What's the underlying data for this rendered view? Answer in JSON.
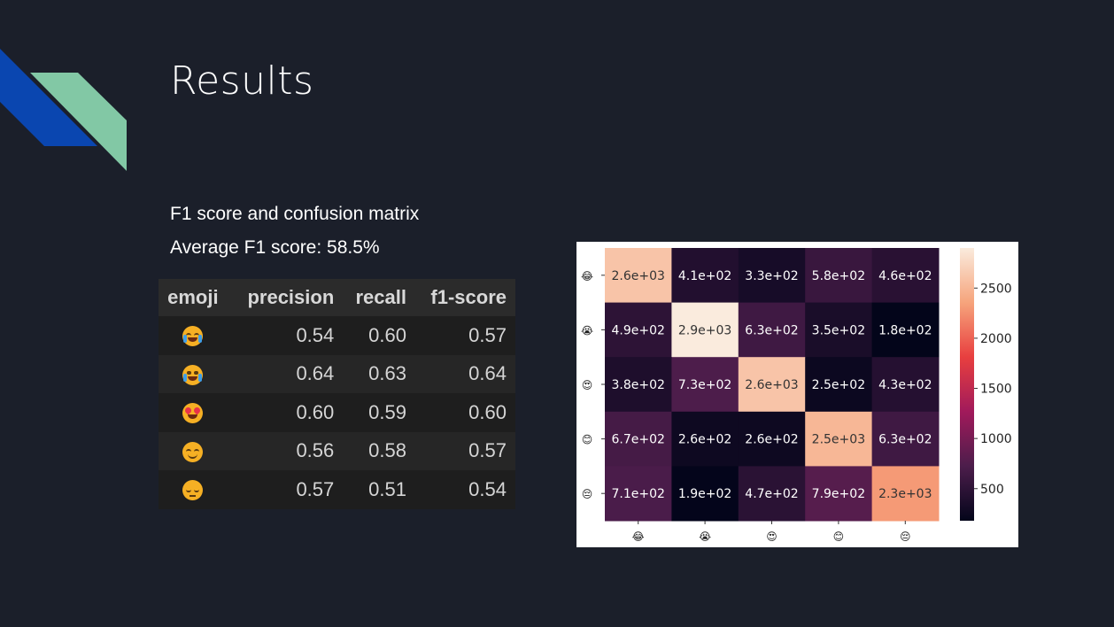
{
  "slide": {
    "title": "Results",
    "subtitle1": "F1 score and confusion matrix",
    "subtitle2": "Average F1 score: 58.5%"
  },
  "table": {
    "headers": [
      "emoji",
      "precision",
      "recall",
      "f1-score"
    ],
    "rows": [
      {
        "emoji": "face-with-tears-of-joy-icon",
        "precision": "0.54",
        "recall": "0.60",
        "f1": "0.57"
      },
      {
        "emoji": "loudly-crying-face-icon",
        "precision": "0.64",
        "recall": "0.63",
        "f1": "0.64"
      },
      {
        "emoji": "heart-eyes-face-icon",
        "precision": "0.60",
        "recall": "0.59",
        "f1": "0.60"
      },
      {
        "emoji": "smiling-face-icon",
        "precision": "0.56",
        "recall": "0.58",
        "f1": "0.57"
      },
      {
        "emoji": "pensive-face-icon",
        "precision": "0.57",
        "recall": "0.51",
        "f1": "0.54"
      }
    ]
  },
  "chart_data": {
    "type": "heatmap",
    "title": "",
    "row_labels": [
      "😂",
      "😭",
      "😍",
      "😊",
      "😔"
    ],
    "col_labels": [
      "😂",
      "😭",
      "😍",
      "😊",
      "😔"
    ],
    "values": [
      [
        2600,
        410,
        330,
        580,
        460
      ],
      [
        490,
        2900,
        630,
        350,
        180
      ],
      [
        380,
        730,
        2600,
        250,
        430
      ],
      [
        670,
        260,
        260,
        2500,
        630
      ],
      [
        710,
        190,
        470,
        790,
        2300
      ]
    ],
    "cell_labels": [
      [
        "2.6e+03",
        "4.1e+02",
        "3.3e+02",
        "5.8e+02",
        "4.6e+02"
      ],
      [
        "4.9e+02",
        "2.9e+03",
        "6.3e+02",
        "3.5e+02",
        "1.8e+02"
      ],
      [
        "3.8e+02",
        "7.3e+02",
        "2.6e+03",
        "2.5e+02",
        "4.3e+02"
      ],
      [
        "6.7e+02",
        "2.6e+02",
        "2.6e+02",
        "2.5e+03",
        "6.3e+02"
      ],
      [
        "7.1e+02",
        "1.9e+02",
        "4.7e+02",
        "7.9e+02",
        "2.3e+03"
      ]
    ],
    "colorbar": {
      "range": [
        180,
        2900
      ],
      "ticks": [
        500,
        1000,
        1500,
        2000,
        2500
      ],
      "tick_labels": [
        "500",
        "1000",
        "1500",
        "2000",
        "2500"
      ]
    },
    "colormap": [
      "#03051a",
      "#4c1d4b",
      "#a11a5b",
      "#e83f3f",
      "#f6a47c",
      "#faebdd"
    ]
  },
  "colors": {
    "background": "#1b1f2a",
    "deco_blue": "#0a46b0",
    "deco_green": "#82c8a5"
  }
}
